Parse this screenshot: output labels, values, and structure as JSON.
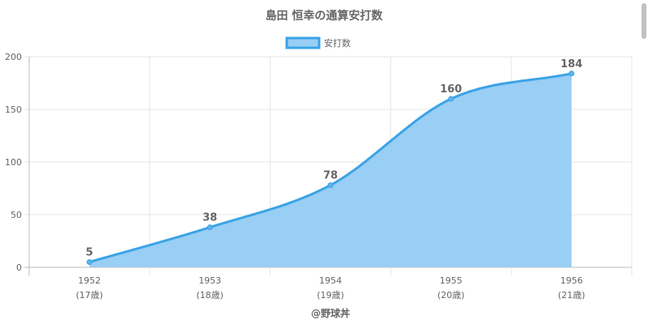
{
  "chart_data": {
    "type": "area",
    "title": "島田 恒幸の通算安打数",
    "legend": {
      "label": "安打数",
      "position": "top"
    },
    "categories": [
      "1952",
      "1953",
      "1954",
      "1955",
      "1956"
    ],
    "sublabels": [
      "(17歳)",
      "(18歳)",
      "(19歳)",
      "(20歳)",
      "(21歳)"
    ],
    "series": [
      {
        "name": "安打数",
        "values": [
          5,
          38,
          78,
          160,
          184
        ]
      }
    ],
    "ylim": [
      0,
      200
    ],
    "yticks": [
      0,
      50,
      100,
      150,
      200
    ],
    "ytick_labels": [
      "0",
      "50",
      "100",
      "150",
      "200"
    ],
    "grid": true,
    "colors": {
      "line": "#3ba3e6",
      "fill": "#99cef5",
      "grid": "#e6e6e6"
    }
  },
  "credit": "@野球丼"
}
